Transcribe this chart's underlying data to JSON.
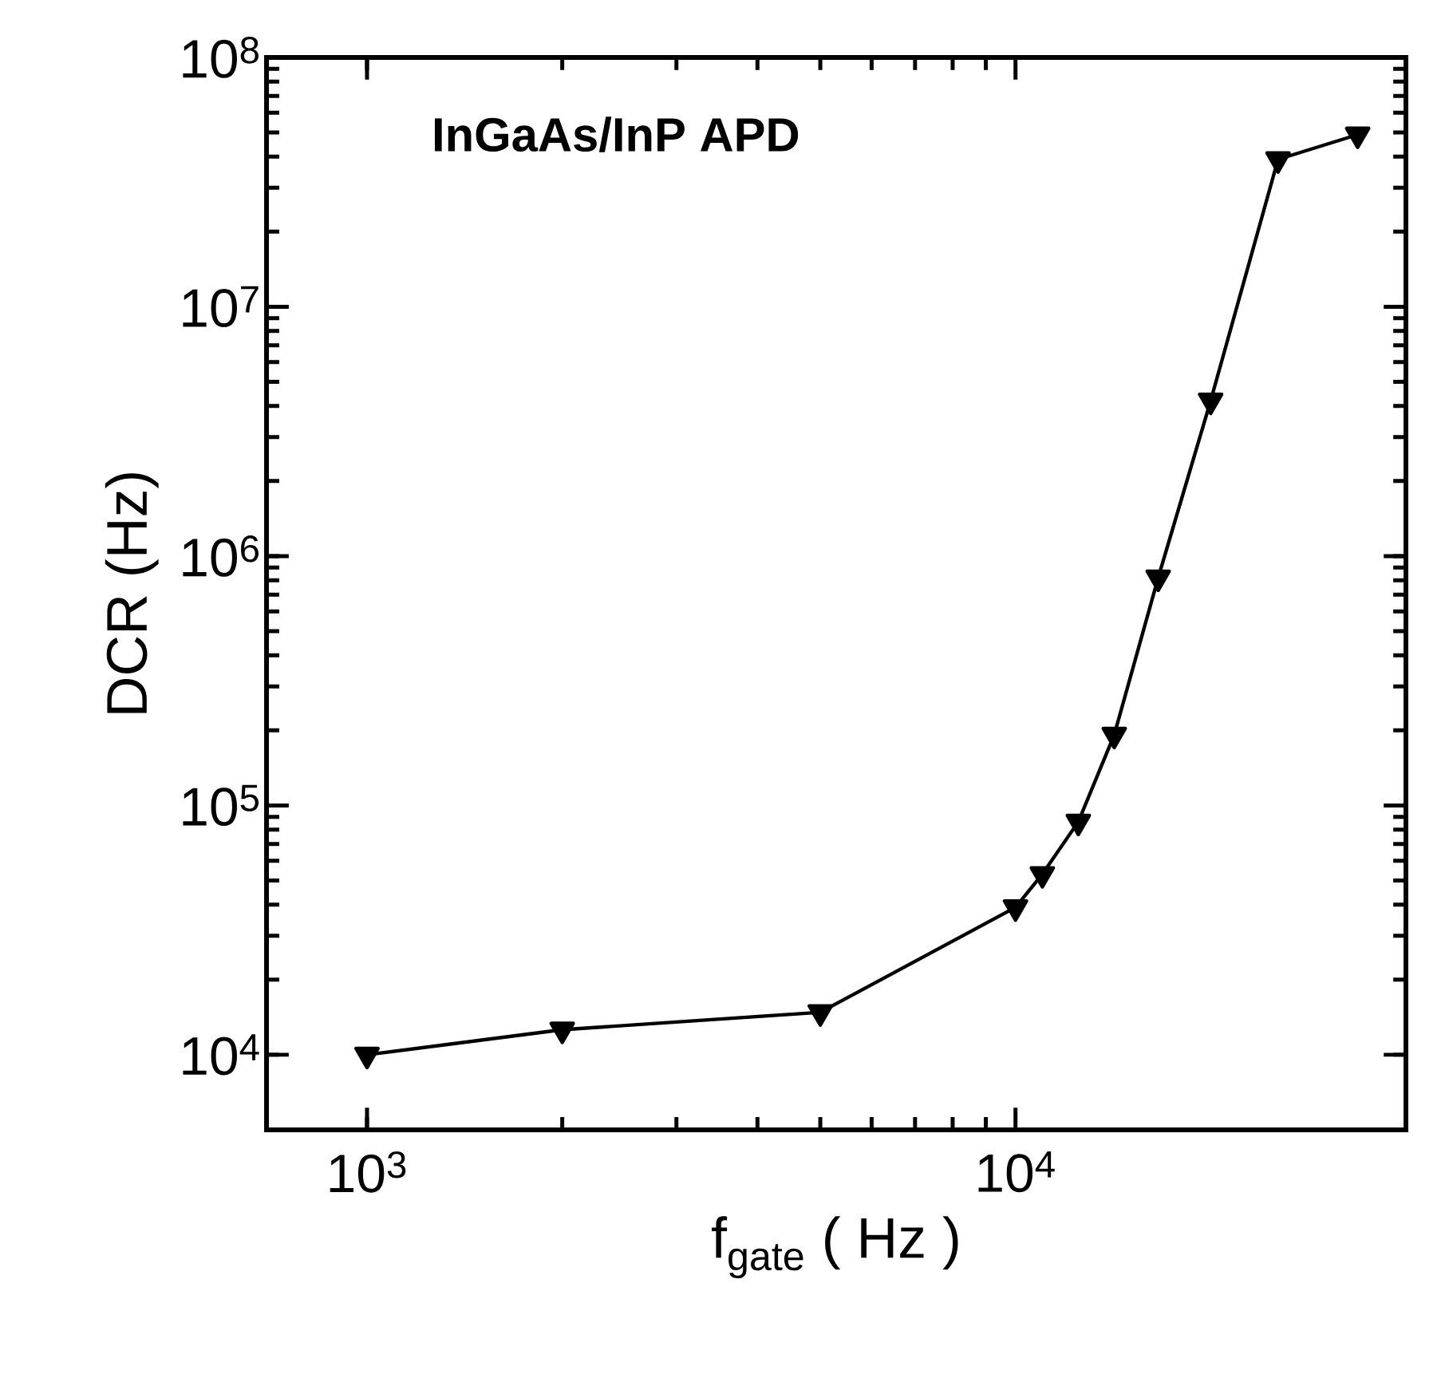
{
  "chart_data": {
    "type": "line",
    "xlabel": "f$_{gate}$ ( Hz )",
    "ylabel": "DCR (Hz)",
    "annotations": [
      "**InGaAs/InP APD**"
    ],
    "log": "xy",
    "marker": "triangle",
    "line_style": "solid",
    "xlim": [
      700,
      40000
    ],
    "ylim": [
      5000,
      100000000
    ],
    "xticks": [
      {
        "value": 1000,
        "label": "10$^{3}$"
      },
      {
        "value": 10000,
        "label": "10$^{4}$"
      }
    ],
    "yticks": [
      {
        "value": 10000,
        "label": "10$^{4}$"
      },
      {
        "value": 100000,
        "label": "10$^{5}$"
      },
      {
        "value": 1000000,
        "label": "10$^{6}$"
      },
      {
        "value": 10000000,
        "label": "10$^{7}$"
      },
      {
        "value": 100000000,
        "label": "10$^{8}$"
      }
    ],
    "series": [
      {
        "color": "#000000",
        "x": [
          1000,
          2000,
          5000,
          10000,
          11000,
          12500,
          14200,
          16600,
          20000,
          25400,
          33700
        ],
        "values": [
          10000,
          12600,
          14800,
          39000,
          53000,
          86000,
          192000,
          820000,
          4200000,
          39000000,
          49000000
        ]
      }
    ]
  }
}
